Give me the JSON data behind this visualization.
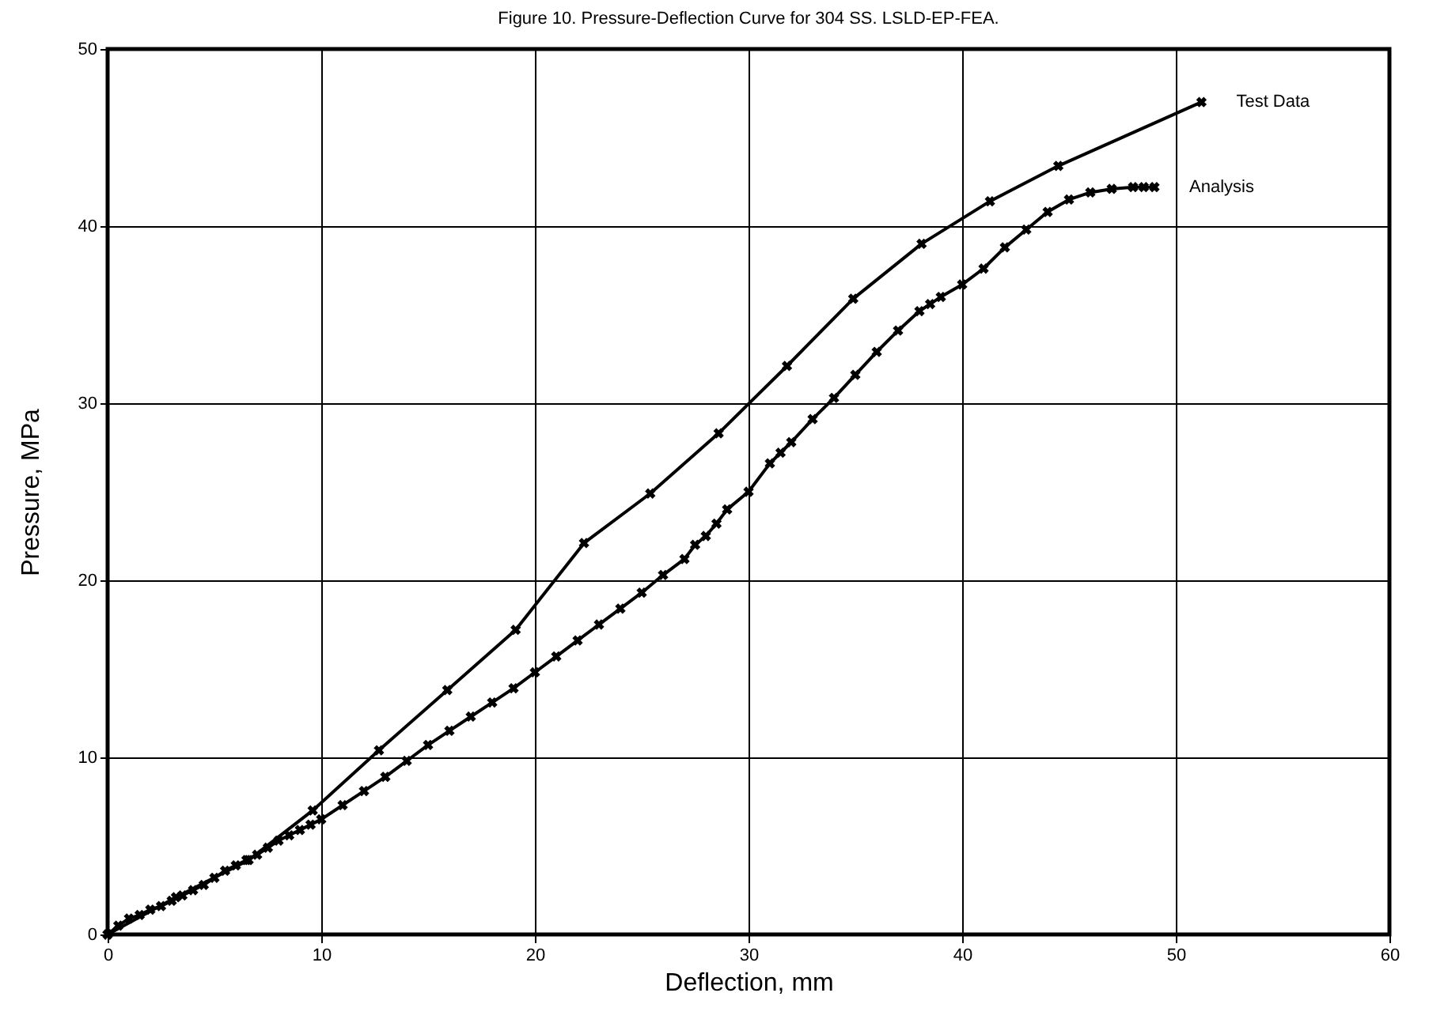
{
  "chart_data": {
    "type": "line",
    "title": "Figure 10. Pressure-Deflection Curve for 304 SS. LSLD-EP-FEA.",
    "xlabel": "Deflection, mm",
    "ylabel": "Pressure, MPa",
    "xlim": [
      0,
      60
    ],
    "xticks": [
      0,
      10,
      20,
      30,
      40,
      50,
      60
    ],
    "ylim": [
      0,
      50
    ],
    "yticks": [
      0,
      10,
      20,
      30,
      40,
      50
    ],
    "grid": true,
    "legend": false,
    "marker": "cross",
    "line_style": "solid",
    "series": [
      {
        "name": "Test Data",
        "color": "#000000",
        "x": [
          0,
          3.2,
          6.6,
          9.6,
          12.7,
          15.9,
          19.1,
          22.3,
          25.4,
          28.6,
          31.8,
          34.9,
          38.1,
          41.3,
          44.5,
          51.2
        ],
        "values": [
          0,
          2.1,
          4.2,
          7.0,
          10.4,
          13.8,
          17.2,
          22.1,
          24.9,
          28.3,
          32.1,
          35.9,
          39.0,
          41.4,
          43.4,
          47.0
        ]
      },
      {
        "name": "Analysis",
        "color": "#000000",
        "x": [
          0,
          0.5,
          1,
          1.5,
          2,
          2.5,
          3,
          3.5,
          4,
          4.5,
          5,
          5.5,
          6,
          6.5,
          7,
          7.5,
          8,
          8.5,
          9,
          9.5,
          10,
          11,
          12,
          13,
          14,
          15,
          16,
          17,
          18,
          19,
          20,
          21,
          22,
          23,
          24,
          25,
          26,
          27,
          27.5,
          28,
          28.5,
          29,
          30,
          31,
          31.5,
          32,
          33,
          34,
          35,
          36,
          37,
          38,
          38.5,
          39,
          40,
          41,
          42,
          43,
          44,
          45,
          46,
          47,
          48,
          48.5,
          49
        ],
        "values": [
          0,
          0.5,
          0.9,
          1.1,
          1.4,
          1.6,
          1.9,
          2.2,
          2.5,
          2.8,
          3.2,
          3.6,
          3.9,
          4.2,
          4.5,
          4.9,
          5.3,
          5.6,
          5.9,
          6.2,
          6.5,
          7.3,
          8.1,
          8.9,
          9.8,
          10.7,
          11.5,
          12.3,
          13.1,
          13.9,
          14.8,
          15.7,
          16.6,
          17.5,
          18.4,
          19.3,
          20.3,
          21.2,
          22.0,
          22.5,
          23.2,
          24.0,
          25.0,
          26.6,
          27.2,
          27.8,
          29.1,
          30.3,
          31.6,
          32.9,
          34.1,
          35.2,
          35.6,
          36.0,
          36.7,
          37.6,
          38.8,
          39.8,
          40.8,
          41.5,
          41.9,
          42.1,
          42.2,
          42.2,
          42.2
        ]
      }
    ]
  }
}
